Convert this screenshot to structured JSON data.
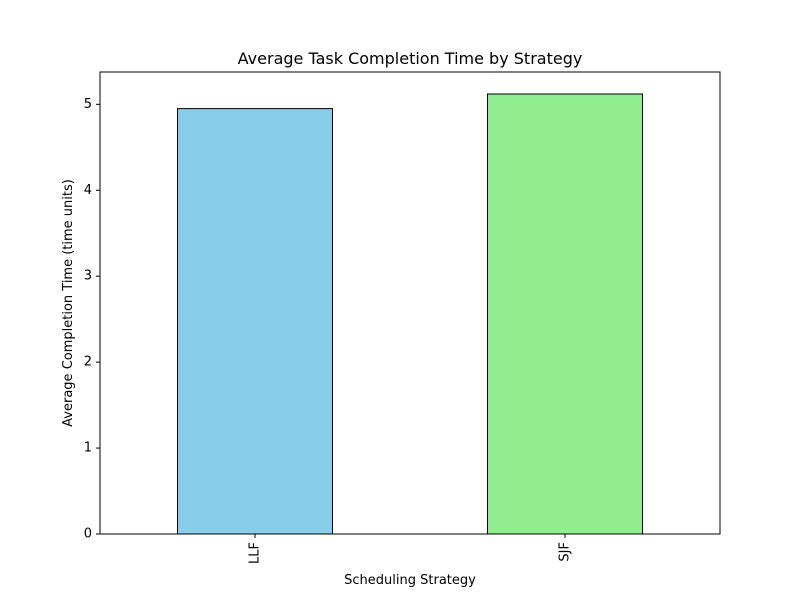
{
  "chart_data": {
    "type": "bar",
    "title": "Average Task Completion Time by Strategy",
    "xlabel": "Scheduling Strategy",
    "ylabel": "Average Completion Time (time units)",
    "categories": [
      "LLF",
      "SJF"
    ],
    "values": [
      4.95,
      5.12
    ],
    "bar_colors": [
      "#87ceeb",
      "#90ee90"
    ],
    "edge_color": "#000000",
    "ylim": [
      0,
      5.376
    ],
    "yticks": [
      0,
      1,
      2,
      3,
      4,
      5
    ],
    "xtick_rotation": 90,
    "grid": false,
    "legend": "none"
  }
}
